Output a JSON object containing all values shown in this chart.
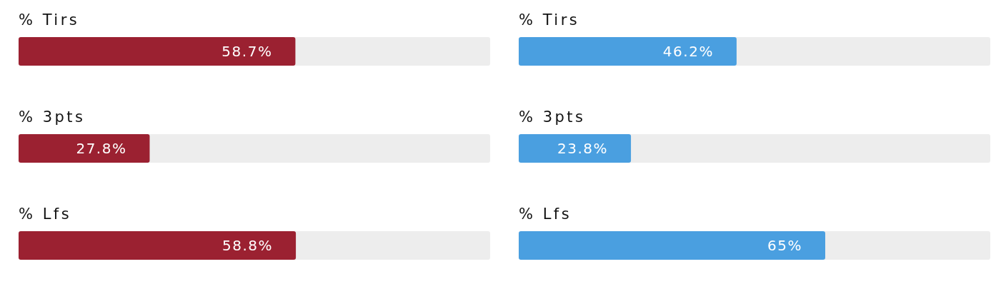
{
  "chart_data": [
    {
      "type": "bar",
      "orientation": "horizontal",
      "categories": [
        "% Tirs",
        "% 3pts",
        "% Lfs"
      ],
      "values": [
        58.7,
        27.8,
        58.8
      ],
      "value_labels": [
        "58.7%",
        "27.8%",
        "58.8%"
      ],
      "color": "#9b2131",
      "xlim": [
        0,
        100
      ],
      "tick_labels": false
    },
    {
      "type": "bar",
      "orientation": "horizontal",
      "categories": [
        "% Tirs",
        "% 3pts",
        "% Lfs"
      ],
      "values": [
        46.2,
        23.8,
        65
      ],
      "value_labels": [
        "46.2%",
        "23.8%",
        "65%"
      ],
      "color": "#4a9fe0",
      "xlim": [
        0,
        100
      ],
      "tick_labels": false
    }
  ]
}
